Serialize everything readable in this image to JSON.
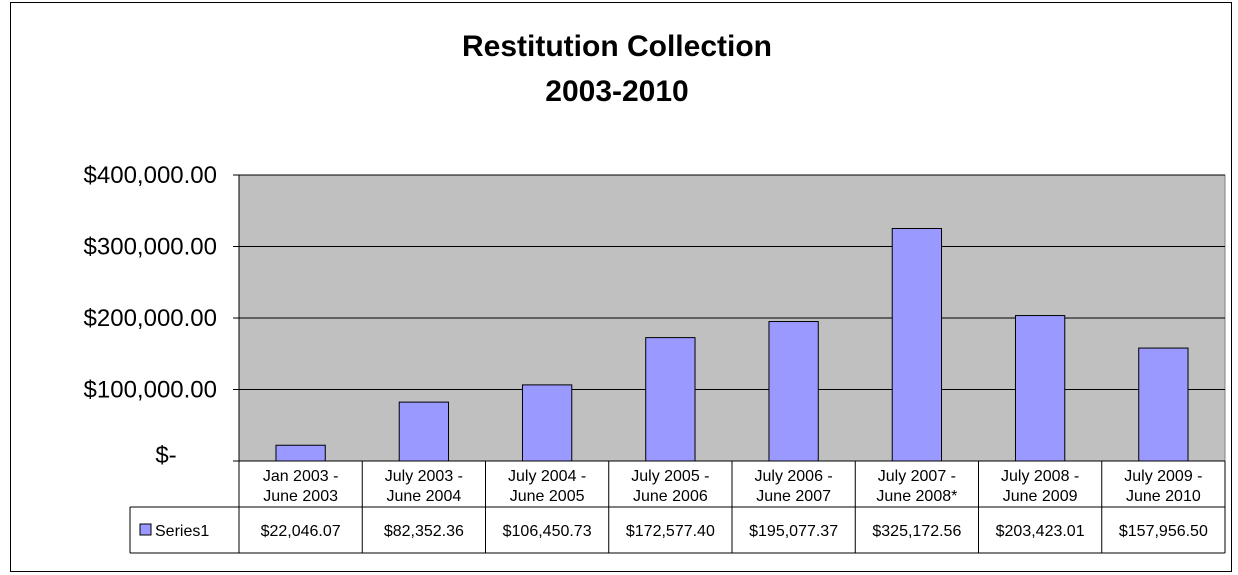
{
  "chart_data": {
    "type": "bar",
    "title": [
      "Restitution Collection",
      "2003-2010"
    ],
    "categories": [
      [
        "Jan 2003 -",
        "June 2003"
      ],
      [
        "July 2003 -",
        "June 2004"
      ],
      [
        "July 2004 -",
        "June 2005"
      ],
      [
        "July 2005 -",
        "June 2006"
      ],
      [
        "July 2006 -",
        "June 2007"
      ],
      [
        "July 2007 -",
        "June 2008*"
      ],
      [
        "July 2008 -",
        "June 2009"
      ],
      [
        "July 2009 -",
        "June 2010"
      ]
    ],
    "series": [
      {
        "name": "Series1",
        "values": [
          22046.07,
          82352.36,
          106450.73,
          172577.4,
          195077.37,
          325172.56,
          203423.01,
          157956.5
        ],
        "value_labels": [
          "$22,046.07",
          "$82,352.36",
          "$106,450.73",
          "$172,577.40",
          "$195,077.37",
          "$325,172.56",
          "$203,423.01",
          "$157,956.50"
        ],
        "color": "#9999FF"
      }
    ],
    "yticks": [
      {
        "value": 0,
        "label": "$-"
      },
      {
        "value": 100000,
        "label": "$100,000.00"
      },
      {
        "value": 200000,
        "label": "$200,000.00"
      },
      {
        "value": 300000,
        "label": "$300,000.00"
      },
      {
        "value": 400000,
        "label": "$400,000.00"
      }
    ],
    "ylim": [
      0,
      400000
    ],
    "grid": true,
    "plot_background": "#C0C0C0",
    "legend": "data-table"
  }
}
